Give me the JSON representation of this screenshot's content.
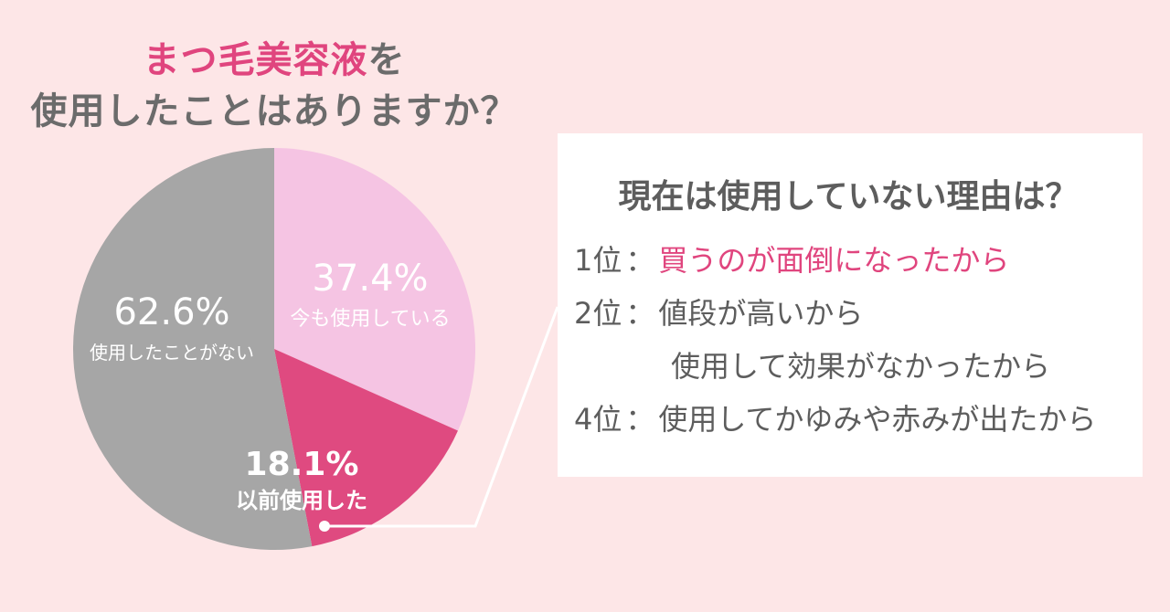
{
  "title": {
    "line1_accent": "まつ毛美容液",
    "line1_rest": "を",
    "line2": "使用したことはありますか？"
  },
  "chart_data": {
    "type": "pie",
    "slices": [
      {
        "value": 37.4,
        "value_label": "37.4%",
        "label": "今も使用している",
        "color": "#f5c4e3",
        "text_color": "#ffffff"
      },
      {
        "value": 18.1,
        "value_label": "18.1%",
        "label": "以前使用した",
        "color": "#df4a80",
        "text_color": "#ffffff"
      },
      {
        "value": 62.6,
        "value_label": "62.6%",
        "label": "使用したことがない",
        "color": "#a6a6a6",
        "text_color": "#ffffff"
      }
    ]
  },
  "reasons": {
    "heading": "現在は使用していない理由は？",
    "rows": [
      {
        "rank": "1位",
        "colon": "：",
        "text": "買うのが面倒になったから",
        "highlight": true
      },
      {
        "rank": "2位",
        "colon": "：",
        "text": "値段が高いから",
        "highlight": false
      },
      {
        "rank": "",
        "colon": "",
        "text": "使用して効果がなかったから",
        "highlight": false
      },
      {
        "rank": "4位",
        "colon": "：",
        "text": "使用してかゆみや赤みが出たから",
        "highlight": false
      }
    ]
  },
  "colors": {
    "background": "#fde6e7",
    "accent": "#e0457e",
    "text": "#5d5d5d",
    "connector": "#ffffff"
  }
}
